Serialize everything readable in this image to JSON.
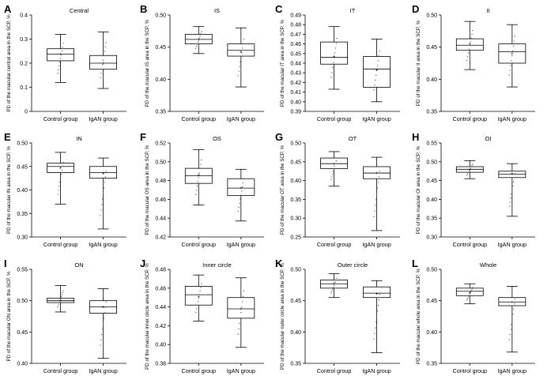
{
  "figure": {
    "description_free": true
  },
  "common": {
    "groups": [
      "Control group",
      "IgAN group"
    ]
  },
  "chart_data": [
    {
      "type": "box",
      "letter": "A",
      "title": "Central",
      "ylabel": "PD of the macular central area in the SCP, %",
      "ylim": [
        0,
        0.4
      ],
      "yticks": [
        0,
        0.1,
        0.2,
        0.3,
        0.4
      ],
      "ytick_labels": [
        "0",
        "0.1",
        "0.2",
        "0.3",
        "0.4"
      ],
      "categories": [
        "Control group",
        "IgAN group"
      ],
      "boxes": [
        {
          "min": 0.12,
          "q1": 0.21,
          "median": 0.238,
          "q3": 0.26,
          "max": 0.32,
          "mean": 0.238
        },
        {
          "min": 0.095,
          "q1": 0.175,
          "median": 0.2,
          "q3": 0.232,
          "max": 0.33,
          "mean": 0.2
        }
      ]
    },
    {
      "type": "box",
      "letter": "B",
      "title": "IS",
      "ylabel": "PD of the macular IS area in the SCP, %",
      "ylim": [
        0.35,
        0.5
      ],
      "yticks": [
        0.35,
        0.4,
        0.45,
        0.5
      ],
      "ytick_labels": [
        "0.35",
        "0.40",
        "0.45",
        "0.50"
      ],
      "categories": [
        "Control group",
        "IgAN group"
      ],
      "boxes": [
        {
          "min": 0.44,
          "q1": 0.455,
          "median": 0.462,
          "q3": 0.47,
          "max": 0.482,
          "mean": 0.462
        },
        {
          "min": 0.388,
          "q1": 0.436,
          "median": 0.445,
          "q3": 0.455,
          "max": 0.48,
          "mean": 0.443
        }
      ]
    },
    {
      "type": "box",
      "letter": "C",
      "title": "IT",
      "ylabel": "PD of the macular IT area in the SCP, %",
      "ylim": [
        0.39,
        0.49
      ],
      "yticks": [
        0.39,
        0.4,
        0.41,
        0.42,
        0.43,
        0.44,
        0.45,
        0.46,
        0.47,
        0.48,
        0.49
      ],
      "ytick_labels": [
        "0.39",
        "0.40",
        "0.41",
        "0.42",
        "0.43",
        "0.44",
        "0.45",
        "0.46",
        "0.47",
        "0.48",
        "0.49"
      ],
      "categories": [
        "Control group",
        "IgAN group"
      ],
      "boxes": [
        {
          "min": 0.413,
          "q1": 0.439,
          "median": 0.446,
          "q3": 0.462,
          "max": 0.478,
          "mean": 0.447
        },
        {
          "min": 0.4,
          "q1": 0.415,
          "median": 0.434,
          "q3": 0.447,
          "max": 0.465,
          "mean": 0.433
        }
      ]
    },
    {
      "type": "box",
      "letter": "D",
      "title": "II",
      "ylabel": "PD of the macular II area in the SCP, %",
      "ylim": [
        0.35,
        0.5
      ],
      "yticks": [
        0.35,
        0.4,
        0.45,
        0.5
      ],
      "ytick_labels": [
        "0.35",
        "0.40",
        "0.45",
        "0.50"
      ],
      "categories": [
        "Control group",
        "IgAN group"
      ],
      "boxes": [
        {
          "min": 0.415,
          "q1": 0.445,
          "median": 0.453,
          "q3": 0.463,
          "max": 0.49,
          "mean": 0.455
        },
        {
          "min": 0.388,
          "q1": 0.425,
          "median": 0.443,
          "q3": 0.455,
          "max": 0.485,
          "mean": 0.44
        }
      ]
    },
    {
      "type": "box",
      "letter": "E",
      "title": "IN",
      "ylabel": "PD of the macular IN area in the SCP, %",
      "ylim": [
        0.3,
        0.5
      ],
      "yticks": [
        0.3,
        0.35,
        0.4,
        0.45,
        0.5
      ],
      "ytick_labels": [
        "0.30",
        "0.35",
        "0.40",
        "0.45",
        "0.50"
      ],
      "categories": [
        "Control group",
        "IgAN group"
      ],
      "boxes": [
        {
          "min": 0.37,
          "q1": 0.437,
          "median": 0.45,
          "q3": 0.457,
          "max": 0.48,
          "mean": 0.447
        },
        {
          "min": 0.317,
          "q1": 0.425,
          "median": 0.437,
          "q3": 0.45,
          "max": 0.468,
          "mean": 0.435
        }
      ]
    },
    {
      "type": "box",
      "letter": "F",
      "title": "OS",
      "ylabel": "PD of the macular OS area in the SCP, %",
      "ylim": [
        0.42,
        0.52
      ],
      "yticks": [
        0.42,
        0.44,
        0.46,
        0.48,
        0.5,
        0.52
      ],
      "ytick_labels": [
        "0.42",
        "0.44",
        "0.46",
        "0.48",
        "0.50",
        "0.52"
      ],
      "categories": [
        "Control group",
        "IgAN group"
      ],
      "boxes": [
        {
          "min": 0.454,
          "q1": 0.477,
          "median": 0.485,
          "q3": 0.493,
          "max": 0.513,
          "mean": 0.486
        },
        {
          "min": 0.437,
          "q1": 0.464,
          "median": 0.472,
          "q3": 0.482,
          "max": 0.492,
          "mean": 0.472
        }
      ]
    },
    {
      "type": "box",
      "letter": "G",
      "title": "OT",
      "ylabel": "PD of the macular OT area in the SCP, %",
      "ylim": [
        0.25,
        0.5
      ],
      "yticks": [
        0.25,
        0.3,
        0.35,
        0.4,
        0.45,
        0.5
      ],
      "ytick_labels": [
        "0.25",
        "0.30",
        "0.35",
        "0.40",
        "0.45",
        "0.50"
      ],
      "categories": [
        "Control group",
        "IgAN group"
      ],
      "boxes": [
        {
          "min": 0.385,
          "q1": 0.432,
          "median": 0.445,
          "q3": 0.46,
          "max": 0.477,
          "mean": 0.444
        },
        {
          "min": 0.267,
          "q1": 0.405,
          "median": 0.42,
          "q3": 0.437,
          "max": 0.462,
          "mean": 0.42
        }
      ]
    },
    {
      "type": "box",
      "letter": "H",
      "title": "OI",
      "ylabel": "PD of the macular OI area in the SCP, %",
      "ylim": [
        0.3,
        0.55
      ],
      "yticks": [
        0.3,
        0.35,
        0.4,
        0.45,
        0.5,
        0.55
      ],
      "ytick_labels": [
        "0.30",
        "0.35",
        "0.40",
        "0.45",
        "0.50",
        "0.55"
      ],
      "categories": [
        "Control group",
        "IgAN group"
      ],
      "boxes": [
        {
          "min": 0.455,
          "q1": 0.472,
          "median": 0.48,
          "q3": 0.487,
          "max": 0.503,
          "mean": 0.479
        },
        {
          "min": 0.355,
          "q1": 0.458,
          "median": 0.467,
          "q3": 0.475,
          "max": 0.495,
          "mean": 0.468
        }
      ]
    },
    {
      "type": "box",
      "letter": "I",
      "title": "ON",
      "ylabel": "PD of the macular ON area in the SCP, %",
      "ylim": [
        0.4,
        0.55
      ],
      "yticks": [
        0.4,
        0.45,
        0.5,
        0.55
      ],
      "ytick_labels": [
        "0.40",
        "0.45",
        "0.50",
        "0.55"
      ],
      "categories": [
        "Control group",
        "IgAN group"
      ],
      "boxes": [
        {
          "min": 0.482,
          "q1": 0.497,
          "median": 0.5,
          "q3": 0.504,
          "max": 0.524,
          "mean": 0.5
        },
        {
          "min": 0.408,
          "q1": 0.48,
          "median": 0.49,
          "q3": 0.5,
          "max": 0.519,
          "mean": 0.49
        }
      ]
    },
    {
      "type": "box",
      "letter": "J",
      "title": "Inner circle",
      "ylabel": "PD of the macular inner circle area in the SCP, %",
      "ylim": [
        0.38,
        0.48
      ],
      "yticks": [
        0.38,
        0.4,
        0.42,
        0.44,
        0.46,
        0.48
      ],
      "ytick_labels": [
        "0.38",
        "0.40",
        "0.42",
        "0.44",
        "0.46",
        "0.48"
      ],
      "categories": [
        "Control group",
        "IgAN group"
      ],
      "boxes": [
        {
          "min": 0.425,
          "q1": 0.442,
          "median": 0.453,
          "q3": 0.462,
          "max": 0.474,
          "mean": 0.451
        },
        {
          "min": 0.397,
          "q1": 0.428,
          "median": 0.438,
          "q3": 0.45,
          "max": 0.471,
          "mean": 0.438
        }
      ]
    },
    {
      "type": "box",
      "letter": "K",
      "title": "Outer circle",
      "ylabel": "PD of the macular outer circle area in the SCP, %",
      "ylim": [
        0.35,
        0.5
      ],
      "yticks": [
        0.35,
        0.4,
        0.45,
        0.5
      ],
      "ytick_labels": [
        "0.35",
        "0.40",
        "0.45",
        "0.50"
      ],
      "categories": [
        "Control group",
        "IgAN group"
      ],
      "boxes": [
        {
          "min": 0.455,
          "q1": 0.47,
          "median": 0.477,
          "q3": 0.483,
          "max": 0.493,
          "mean": 0.477
        },
        {
          "min": 0.367,
          "q1": 0.455,
          "median": 0.462,
          "q3": 0.472,
          "max": 0.482,
          "mean": 0.461
        }
      ]
    },
    {
      "type": "box",
      "letter": "L",
      "title": "Whole",
      "ylabel": "PD of the macular whole area in the SCP, %",
      "ylim": [
        0.35,
        0.5
      ],
      "yticks": [
        0.35,
        0.4,
        0.45,
        0.5
      ],
      "ytick_labels": [
        "0.35",
        "0.40",
        "0.45",
        "0.50"
      ],
      "categories": [
        "Control group",
        "IgAN group"
      ],
      "boxes": [
        {
          "min": 0.445,
          "q1": 0.458,
          "median": 0.465,
          "q3": 0.47,
          "max": 0.477,
          "mean": 0.463
        },
        {
          "min": 0.368,
          "q1": 0.442,
          "median": 0.448,
          "q3": 0.455,
          "max": 0.473,
          "mean": 0.448
        }
      ]
    }
  ]
}
